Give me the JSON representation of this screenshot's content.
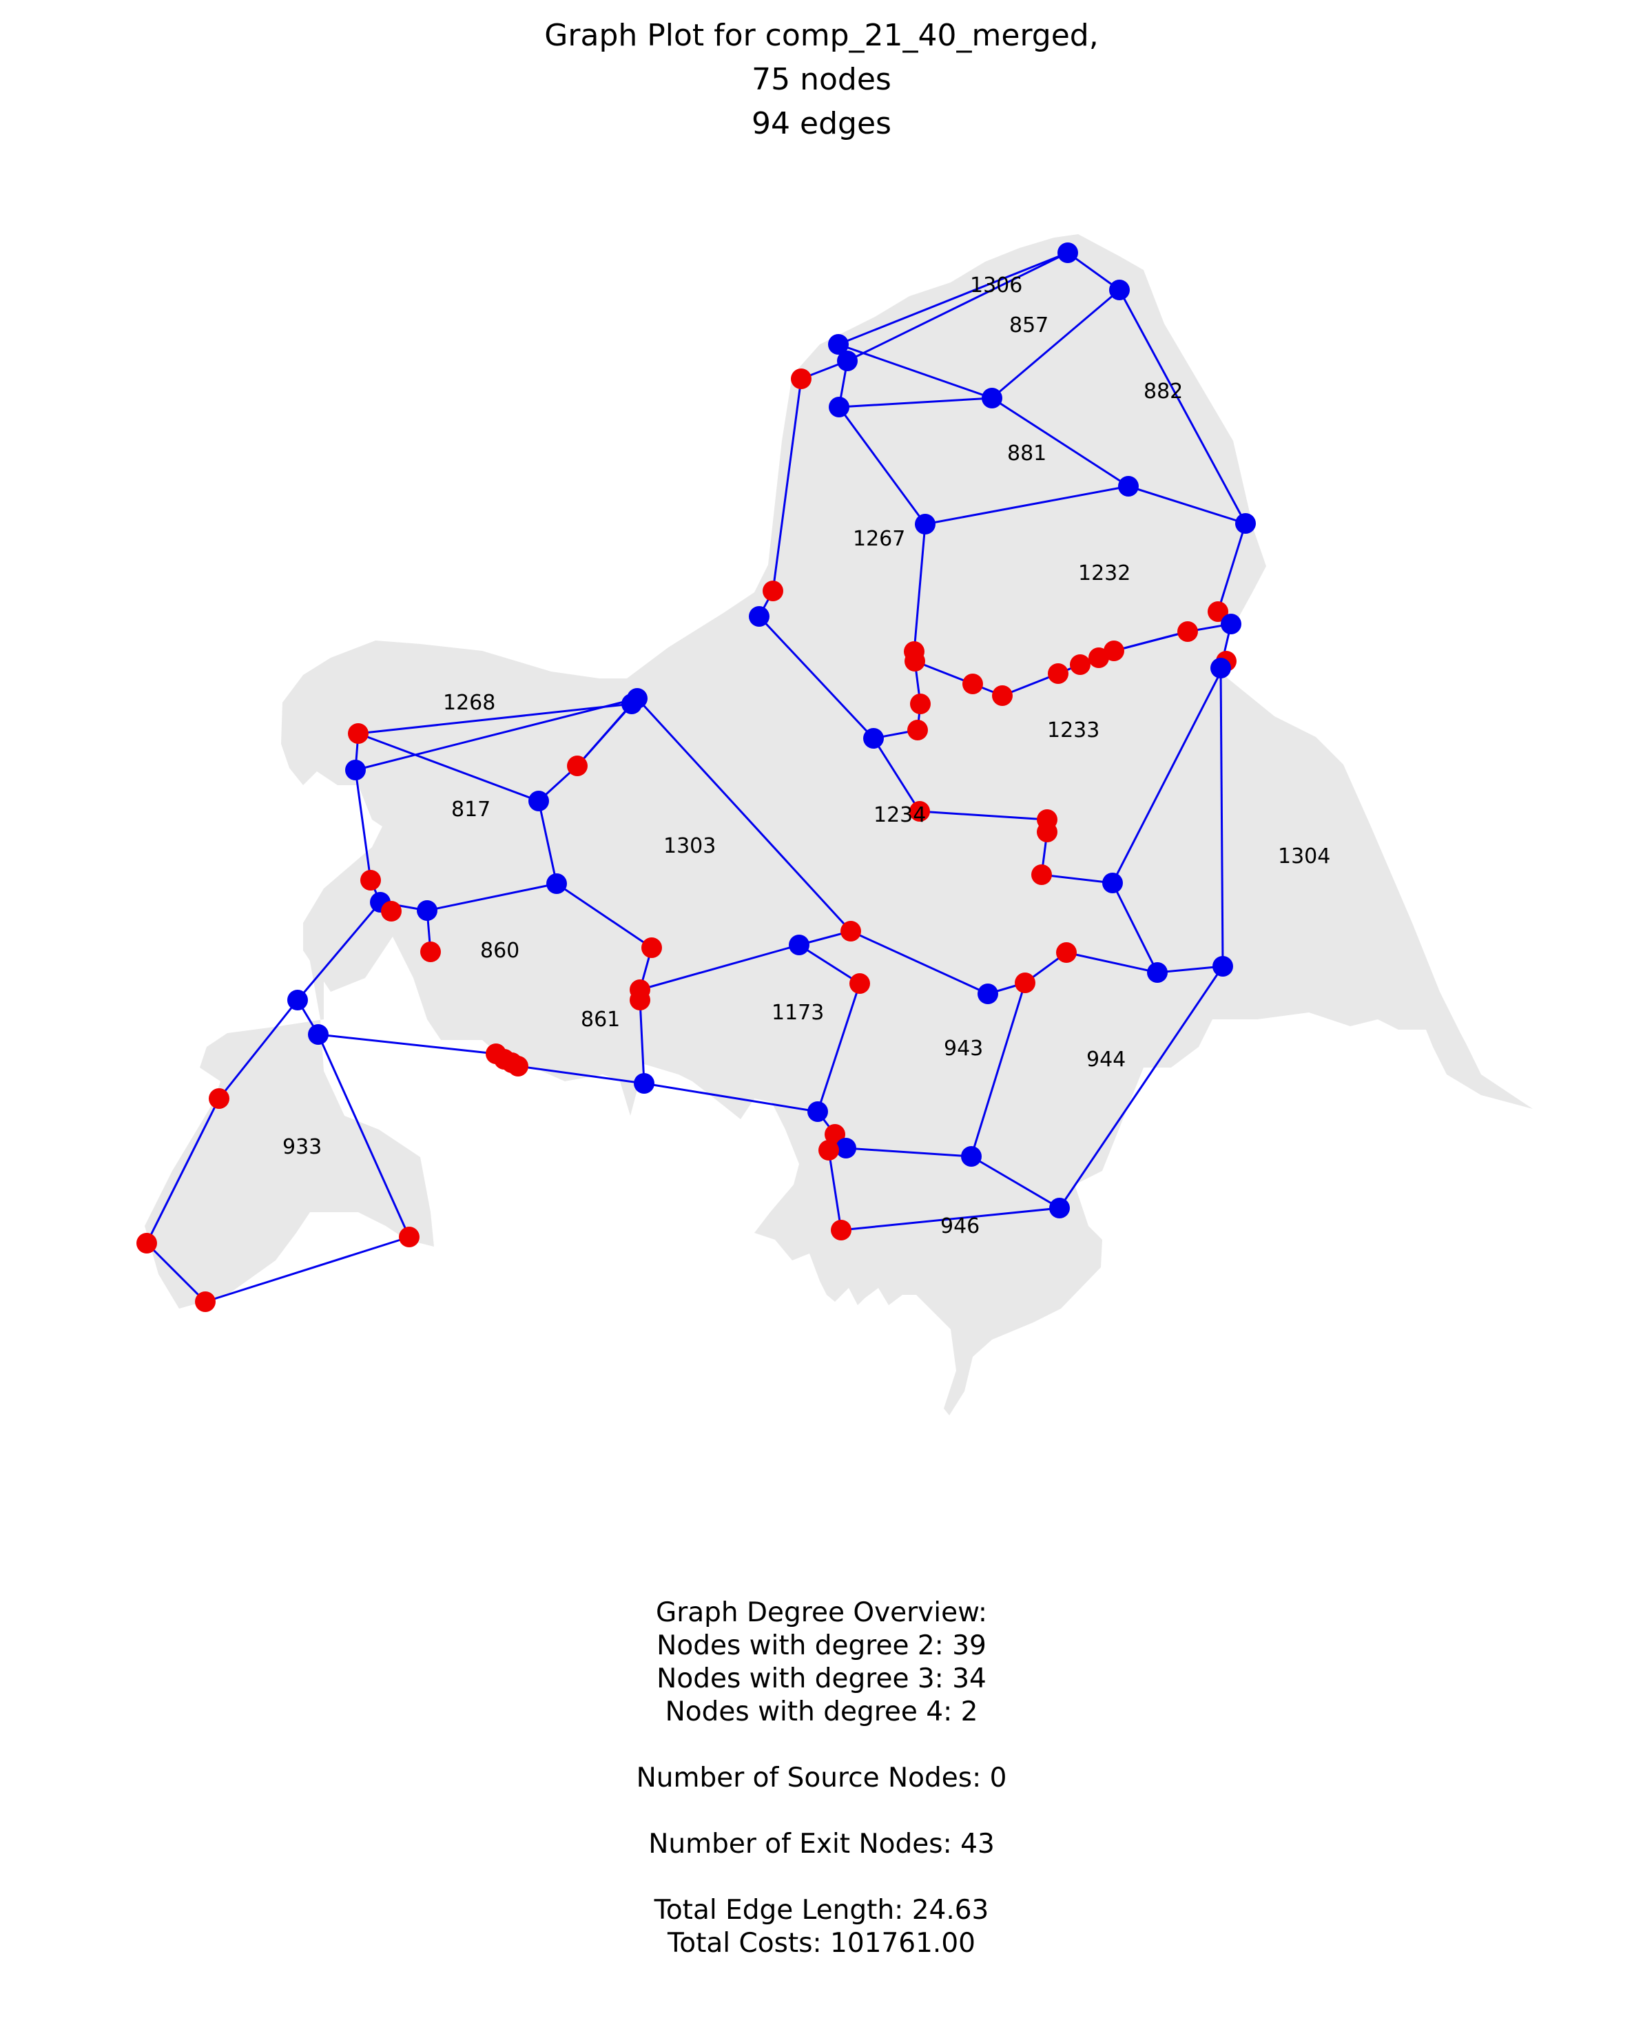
{
  "title": {
    "line1": "Graph Plot for comp_21_40_merged,",
    "line2": "75 nodes",
    "line3": "94 edges"
  },
  "colors": {
    "region_fill": "#e8e8e8",
    "edge": "#0000ee",
    "node_regular": "#0000ee",
    "node_exit": "#ee0000",
    "background": "#ffffff"
  },
  "graph": {
    "region_labels": [
      "1306",
      "857",
      "882",
      "881",
      "1267",
      "1232",
      "1268",
      "1233",
      "817",
      "1234",
      "1303",
      "1304",
      "860",
      "1173",
      "861",
      "943",
      "944",
      "933",
      "946"
    ]
  },
  "stats": {
    "heading": "Graph Degree Overview:",
    "degree2": "Nodes with degree 2: 39",
    "degree3": "Nodes with degree 3: 34",
    "degree4": "Nodes with degree 4: 2",
    "sources": "Number of Source Nodes: 0",
    "exits": "Number of Exit Nodes: 43",
    "edge_length": "Total Edge Length: 24.63",
    "costs": "Total Costs: 101761.00"
  }
}
